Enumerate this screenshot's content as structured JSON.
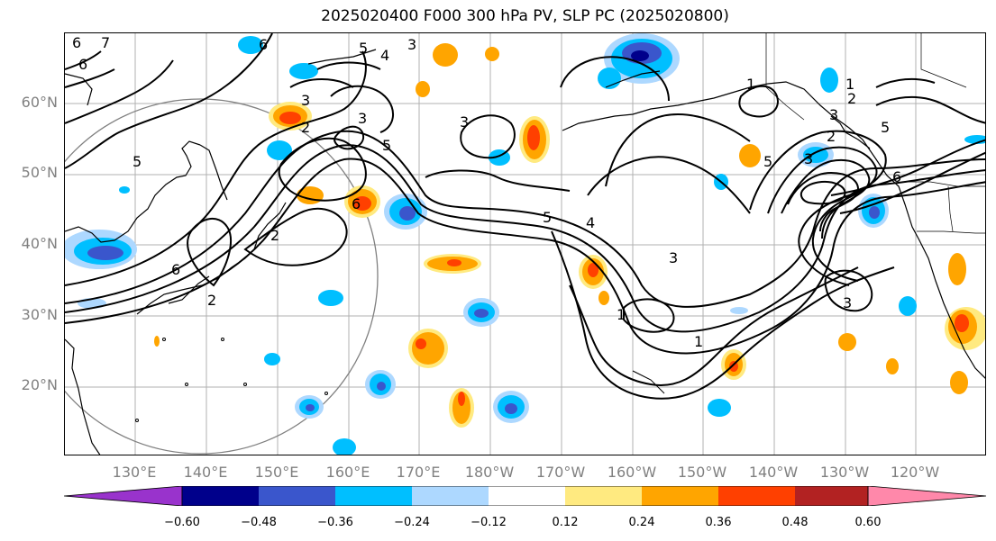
{
  "title": "2025020400 F000 300 hPa PV, SLP PC (2025020800)",
  "lat_labels": [
    "60°N",
    "50°N",
    "40°N",
    "30°N",
    "20°N"
  ],
  "lon_labels": [
    "130°E",
    "140°E",
    "150°E",
    "160°E",
    "170°E",
    "180°W",
    "170°W",
    "160°W",
    "150°W",
    "140°W",
    "130°W",
    "120°W"
  ],
  "contour_labels": [
    "6",
    "7",
    "6",
    "6",
    "5",
    "4",
    "3",
    "3",
    "3",
    "2",
    "5",
    "5",
    "3",
    "6",
    "2",
    "6",
    "2",
    "5",
    "4",
    "3",
    "1",
    "1",
    "1",
    "3",
    "5",
    "3",
    "2",
    "1",
    "2",
    "5",
    "6",
    "3"
  ],
  "colorbar": {
    "ticks": [
      "−0.60",
      "−0.48",
      "−0.36",
      "−0.24",
      "−0.12",
      "0.12",
      "0.24",
      "0.36",
      "0.48",
      "0.60"
    ],
    "colors": [
      "#9933cc",
      "#00008b",
      "#3a56cc",
      "#00bfff",
      "#add8ff",
      "#ffffff",
      "#ffea80",
      "#ffa500",
      "#ff4000",
      "#b22222",
      "#ff88aa"
    ]
  },
  "pv_colors": {
    "neg_light": "#add8ff",
    "neg_mid": "#00bfff",
    "neg_dark": "#3a56cc",
    "neg_darkest": "#00008b",
    "pos_light": "#ffea80",
    "pos_mid": "#ffa500",
    "pos_dark": "#ff4000",
    "pos_darkest": "#b22222"
  }
}
